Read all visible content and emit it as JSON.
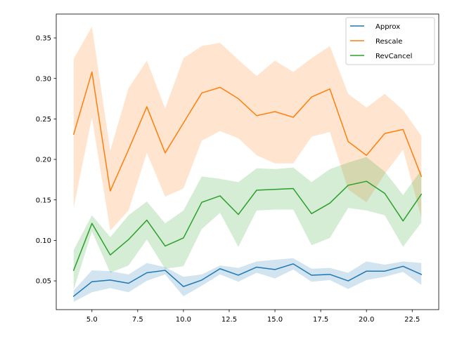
{
  "chart_data": {
    "type": "line",
    "title": "",
    "xlabel": "",
    "ylabel": "",
    "xlim": [
      3.05,
      23.95
    ],
    "ylim": [
      0.0145,
      0.3795
    ],
    "x": [
      4,
      5,
      6,
      7,
      8,
      9,
      10,
      11,
      12,
      13,
      14,
      15,
      16,
      17,
      18,
      19,
      20,
      21,
      22,
      23
    ],
    "x_ticks": [
      5.0,
      7.5,
      10.0,
      12.5,
      15.0,
      17.5,
      20.0,
      22.5
    ],
    "x_tick_labels": [
      "5.0",
      "7.5",
      "10.0",
      "12.5",
      "15.0",
      "17.5",
      "20.0",
      "22.5"
    ],
    "y_ticks": [
      0.05,
      0.1,
      0.15,
      0.2,
      0.25,
      0.3,
      0.35
    ],
    "y_tick_labels": [
      "0.05",
      "0.10",
      "0.15",
      "0.20",
      "0.25",
      "0.30",
      "0.35"
    ],
    "grid": false,
    "legend_position": "top-right",
    "series": [
      {
        "name": "Approx",
        "color": "#1f77b4",
        "values": [
          0.031,
          0.049,
          0.051,
          0.047,
          0.06,
          0.063,
          0.043,
          0.051,
          0.065,
          0.057,
          0.067,
          0.064,
          0.071,
          0.057,
          0.058,
          0.05,
          0.062,
          0.062,
          0.068,
          0.058
        ],
        "lower": [
          0.024,
          0.036,
          0.041,
          0.036,
          0.05,
          0.058,
          0.031,
          0.044,
          0.058,
          0.049,
          0.06,
          0.053,
          0.064,
          0.049,
          0.051,
          0.04,
          0.051,
          0.055,
          0.061,
          0.045
        ],
        "upper": [
          0.038,
          0.063,
          0.062,
          0.058,
          0.072,
          0.067,
          0.055,
          0.058,
          0.069,
          0.066,
          0.074,
          0.076,
          0.078,
          0.065,
          0.066,
          0.06,
          0.074,
          0.07,
          0.074,
          0.072
        ]
      },
      {
        "name": "Rescale",
        "color": "#ff7f0e",
        "values": [
          0.231,
          0.308,
          0.161,
          0.212,
          0.265,
          0.208,
          0.245,
          0.282,
          0.289,
          0.275,
          0.254,
          0.259,
          0.252,
          0.277,
          0.287,
          0.222,
          0.205,
          0.232,
          0.237,
          0.179
        ],
        "lower": [
          0.14,
          0.252,
          0.112,
          0.137,
          0.208,
          0.154,
          0.164,
          0.223,
          0.235,
          0.226,
          0.205,
          0.195,
          0.195,
          0.228,
          0.234,
          0.163,
          0.147,
          0.182,
          0.212,
          0.128
        ],
        "upper": [
          0.324,
          0.364,
          0.211,
          0.288,
          0.322,
          0.263,
          0.325,
          0.34,
          0.344,
          0.323,
          0.303,
          0.322,
          0.308,
          0.325,
          0.34,
          0.281,
          0.264,
          0.281,
          0.261,
          0.229
        ]
      },
      {
        "name": "RevCancel",
        "color": "#2ca02c",
        "values": [
          0.063,
          0.121,
          0.082,
          0.101,
          0.125,
          0.093,
          0.103,
          0.147,
          0.155,
          0.132,
          0.162,
          0.163,
          0.164,
          0.133,
          0.146,
          0.168,
          0.173,
          0.158,
          0.124,
          0.157
        ],
        "lower": [
          0.039,
          0.111,
          0.06,
          0.069,
          0.101,
          0.065,
          0.068,
          0.114,
          0.134,
          0.092,
          0.137,
          0.138,
          0.138,
          0.094,
          0.103,
          0.14,
          0.137,
          0.131,
          0.092,
          0.122
        ],
        "upper": [
          0.088,
          0.131,
          0.104,
          0.131,
          0.148,
          0.121,
          0.137,
          0.179,
          0.176,
          0.172,
          0.189,
          0.188,
          0.19,
          0.172,
          0.188,
          0.196,
          0.203,
          0.185,
          0.156,
          0.187
        ]
      }
    ]
  }
}
